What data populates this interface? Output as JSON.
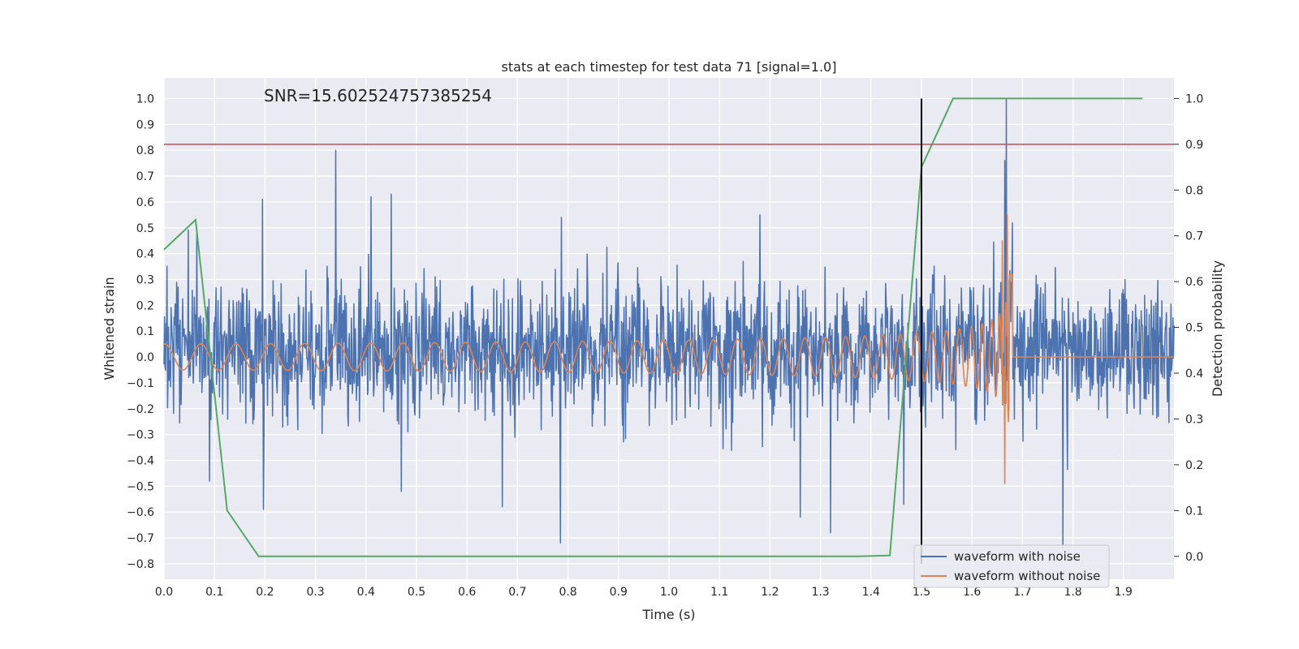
{
  "chart_data": {
    "type": "line",
    "title": "stats at each timestep for test data 71 [signal=1.0]",
    "annotation": "SNR=15.602524757385254",
    "xlabel": "Time (s)",
    "ylabel": "Whitened strain",
    "y2label": "Detection probability",
    "xlim": [
      0.0,
      2.0
    ],
    "ylim": [
      -0.86,
      1.08
    ],
    "y2lim": [
      -0.05,
      1.045
    ],
    "x_ticks": [
      "0.0",
      "0.1",
      "0.2",
      "0.3",
      "0.4",
      "0.5",
      "0.6",
      "0.7",
      "0.8",
      "0.9",
      "1.0",
      "1.1",
      "1.2",
      "1.3",
      "1.4",
      "1.5",
      "1.6",
      "1.7",
      "1.8",
      "1.9"
    ],
    "y_ticks": [
      "1.0",
      "0.9",
      "0.8",
      "0.7",
      "0.6",
      "0.5",
      "0.4",
      "0.3",
      "0.2",
      "0.1",
      "0.0",
      "−0.1",
      "−0.2",
      "−0.3",
      "−0.4",
      "−0.5",
      "−0.6",
      "−0.7",
      "−0.8"
    ],
    "y2_ticks": [
      "1.0",
      "0.9",
      "0.8",
      "0.7",
      "0.6",
      "0.5",
      "0.4",
      "0.3",
      "0.2",
      "0.1",
      "0.0"
    ],
    "grid": true,
    "legend_position": "lower-right",
    "threshold": {
      "axis": "y2",
      "value": 0.9,
      "color": "#c44e52"
    },
    "vertical_marker": {
      "x": 1.5,
      "y_from": -0.8,
      "y_to": 1.0,
      "color": "#000000"
    },
    "detection_probability": {
      "axis": "y2",
      "color": "#55a868",
      "x": [
        0.0,
        0.0625,
        0.125,
        0.1875,
        1.375,
        1.4375,
        1.5,
        1.5625,
        1.9375
      ],
      "y": [
        0.67,
        0.735,
        0.1,
        0.0,
        0.0,
        0.002,
        0.85,
        1.0,
        1.0
      ]
    },
    "series": [
      {
        "name": "waveform with noise",
        "color": "#4c72b0",
        "generated_noise": {
          "sigma": 0.13,
          "seed": 71,
          "step": 0.001
        },
        "x": [
          0.065,
          0.09,
          0.195,
          0.197,
          0.34,
          0.41,
          0.45,
          0.47,
          0.67,
          0.785,
          0.787,
          1.18,
          1.26,
          1.32,
          1.465,
          1.665,
          1.668,
          1.78
        ],
        "y": [
          0.5,
          -0.48,
          0.61,
          -0.59,
          0.8,
          0.62,
          0.63,
          -0.52,
          -0.58,
          -0.72,
          0.54,
          0.55,
          -0.62,
          -0.68,
          -0.57,
          0.76,
          1.0,
          -0.74
        ]
      },
      {
        "name": "waveform without noise",
        "color": "#dd8452",
        "chirp": {
          "f_start": 14.0,
          "t_merge": 1.675,
          "amp_start": 0.05,
          "amp_peak": 0.48,
          "ringdown_end": 1.68
        },
        "x": [
          1.66,
          1.665,
          1.67
        ],
        "y": [
          0.45,
          -0.49,
          0.55
        ]
      }
    ]
  }
}
